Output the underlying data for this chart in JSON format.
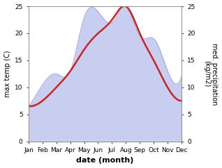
{
  "months": [
    "Jan",
    "Feb",
    "Mar",
    "Apr",
    "May",
    "Jun",
    "Jul",
    "Aug",
    "Sep",
    "Oct",
    "Nov",
    "Dec"
  ],
  "temp": [
    6.5,
    7.5,
    10.0,
    13.0,
    17.0,
    20.0,
    22.5,
    25.0,
    20.0,
    15.0,
    10.0,
    7.5
  ],
  "precip": [
    6.5,
    10.5,
    12.5,
    13.0,
    23.0,
    24.0,
    22.0,
    25.0,
    19.5,
    19.0,
    13.0,
    12.0
  ],
  "temp_color": "#cc2222",
  "precip_fill_color": "#c8cef0",
  "precip_line_color": "#9099cc",
  "ylabel_left": "max temp (C)",
  "ylabel_right": "med. precipitation\n(kg/m2)",
  "xlabel": "date (month)",
  "ylim": [
    0,
    25
  ],
  "yticks": [
    0,
    5,
    10,
    15,
    20,
    25
  ],
  "bg_color": "#ffffff",
  "axis_fontsize": 7,
  "tick_fontsize": 6.5,
  "xlabel_fontsize": 8,
  "line_width": 1.8
}
